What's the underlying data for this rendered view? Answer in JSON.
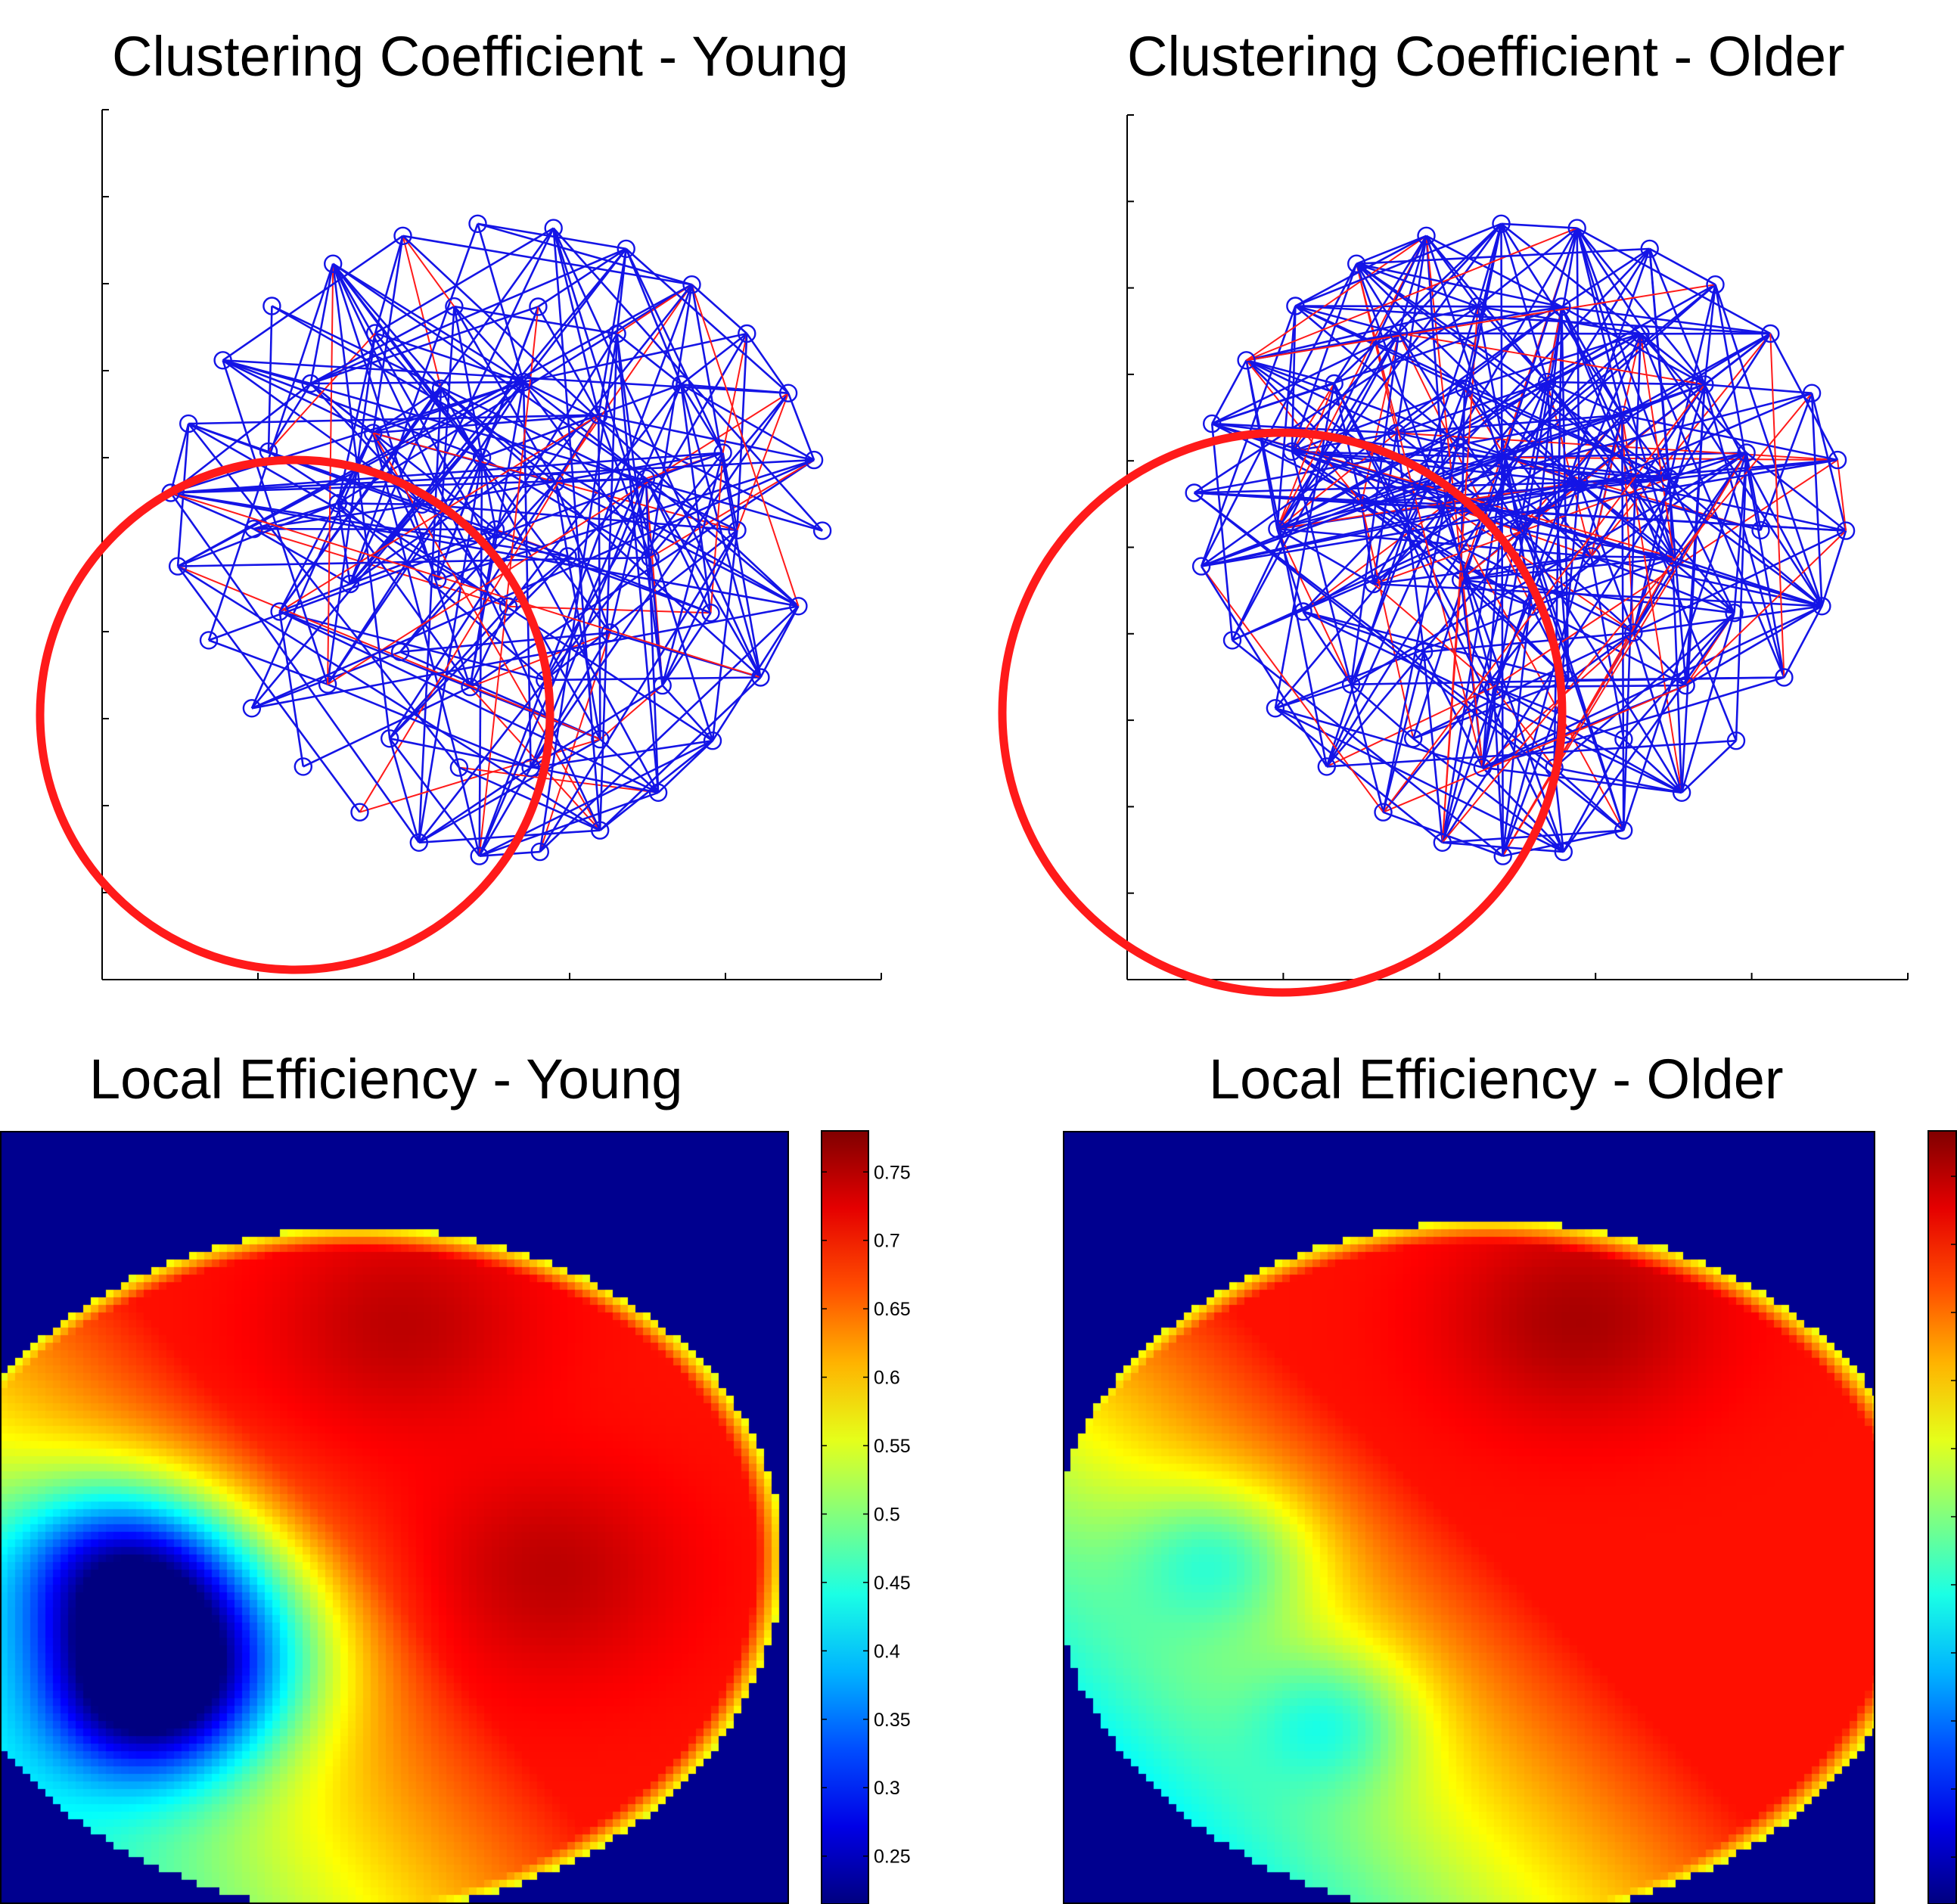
{
  "titles": {
    "cc_young": "Clustering Coefficient - Young",
    "cc_older": "Clustering Coefficient - Older",
    "le_young": "Local Efficiency - Young",
    "le_older": "Local Efficiency - Older"
  },
  "colors": {
    "edge_main": "#1414e6",
    "edge_diff": "#ff1a1a",
    "highlight_circle": "#ff1a1a",
    "heatmap_background": "#00008f"
  },
  "chart_data": [
    {
      "type": "network",
      "title": "Clustering Coefficient - Young",
      "group": "Young",
      "node_count": 64,
      "edge_colors": [
        "blue",
        "red"
      ],
      "x_ticks": 6,
      "y_ticks": 11,
      "highlight": "red circle around lower-left region"
    },
    {
      "type": "network",
      "title": "Clustering Coefficient - Older",
      "group": "Older",
      "node_count": 64,
      "edge_colors": [
        "blue",
        "red"
      ],
      "x_ticks": 6,
      "y_ticks": 11,
      "highlight": "red circle around lower-left region"
    },
    {
      "type": "heatmap",
      "title": "Local Efficiency - Young",
      "group": "Young",
      "colormap": "jet",
      "colorbar_ticks": [
        "0.75",
        "0.7",
        "0.65",
        "0.6",
        "0.55",
        "0.5",
        "0.45",
        "0.4",
        "0.35",
        "0.3",
        "0.25"
      ],
      "colorbar_range": [
        0.215,
        0.78
      ]
    },
    {
      "type": "heatmap",
      "title": "Local Efficiency - Older",
      "group": "Older",
      "colormap": "jet"
    }
  ]
}
